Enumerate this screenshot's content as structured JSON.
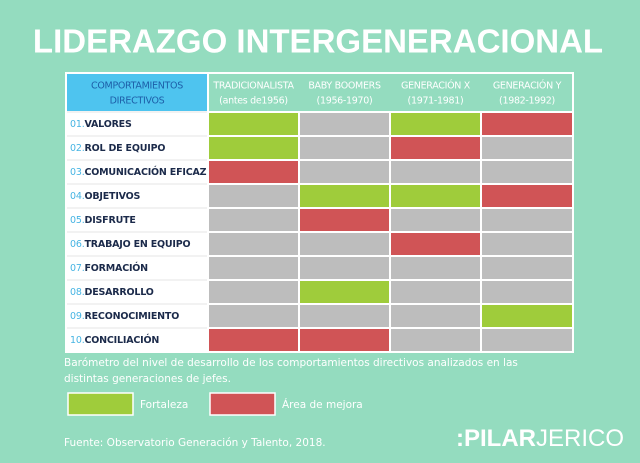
{
  "title": "LIDERAZGO INTERGENERACIONAL",
  "table": {
    "header": [
      [
        "COMPORTAMIENTOS",
        "DIRECTIVOS"
      ],
      [
        "TRADICIONALISTA",
        "(antes de1956)"
      ],
      [
        "BABY BOOMERS",
        "(1956-1970)"
      ],
      [
        "GENERACIÓN X",
        "(1971-1981)"
      ],
      [
        "GENERACIÓN Y",
        "(1982-1992)"
      ]
    ],
    "rows": [
      {
        "number": "01.",
        "label": "VALORES",
        "cells": [
          "#9fcc3b",
          "#bdbdbd",
          "#9fcc3b",
          "#d05456"
        ]
      },
      {
        "number": "02.",
        "label": "ROL DE EQUIPO",
        "cells": [
          "#9fcc3b",
          "#bdbdbd",
          "#d05456",
          "#bdbdbd"
        ]
      },
      {
        "number": "03.",
        "label": "COMUNICACIÓN EFICAZ",
        "cells": [
          "#d05456",
          "#bdbdbd",
          "#bdbdbd",
          "#bdbdbd"
        ]
      },
      {
        "number": "04.",
        "label": "OBJETIVOS",
        "cells": [
          "#bdbdbd",
          "#9fcc3b",
          "#9fcc3b",
          "#d05456"
        ]
      },
      {
        "number": "05.",
        "label": "DISFRUTE",
        "cells": [
          "#bdbdbd",
          "#d05456",
          "#bdbdbd",
          "#bdbdbd"
        ]
      },
      {
        "number": "06.",
        "label": "TRABAJO EN EQUIPO",
        "cells": [
          "#bdbdbd",
          "#bdbdbd",
          "#d05456",
          "#bdbdbd"
        ]
      },
      {
        "number": "07.",
        "label": "FORMACIÓN",
        "cells": [
          "#bdbdbd",
          "#bdbdbd",
          "#bdbdbd",
          "#bdbdbd"
        ]
      },
      {
        "number": "08.",
        "label": "DESARROLLO",
        "cells": [
          "#bdbdbd",
          "#9fcc3b",
          "#bdbdbd",
          "#bdbdbd"
        ]
      },
      {
        "number": "09.",
        "label": "RECONOCIMIENTO",
        "cells": [
          "#bdbdbd",
          "#bdbdbd",
          "#bdbdbd",
          "#9fcc3b"
        ]
      },
      {
        "number": "10.",
        "label": "CONCILIACIÓN",
        "cells": [
          "#d05456",
          "#d05456",
          "#bdbdbd",
          "#bdbdbd"
        ]
      }
    ]
  },
  "caption": [
    "Barómetro del nivel de desarrollo de los comportamientos directivos analizados en las",
    "distintas generaciones de jefes."
  ],
  "legend": [
    {
      "label": "Fortaleza",
      "color": "#9fcc3b"
    },
    {
      "label": "Área de mejora",
      "color": "#d05456"
    }
  ],
  "source": "Fuente: Observatorio Generación y Talento, 2018.",
  "logo": {
    "bold": ":PILAR",
    "light": "JERICO"
  }
}
